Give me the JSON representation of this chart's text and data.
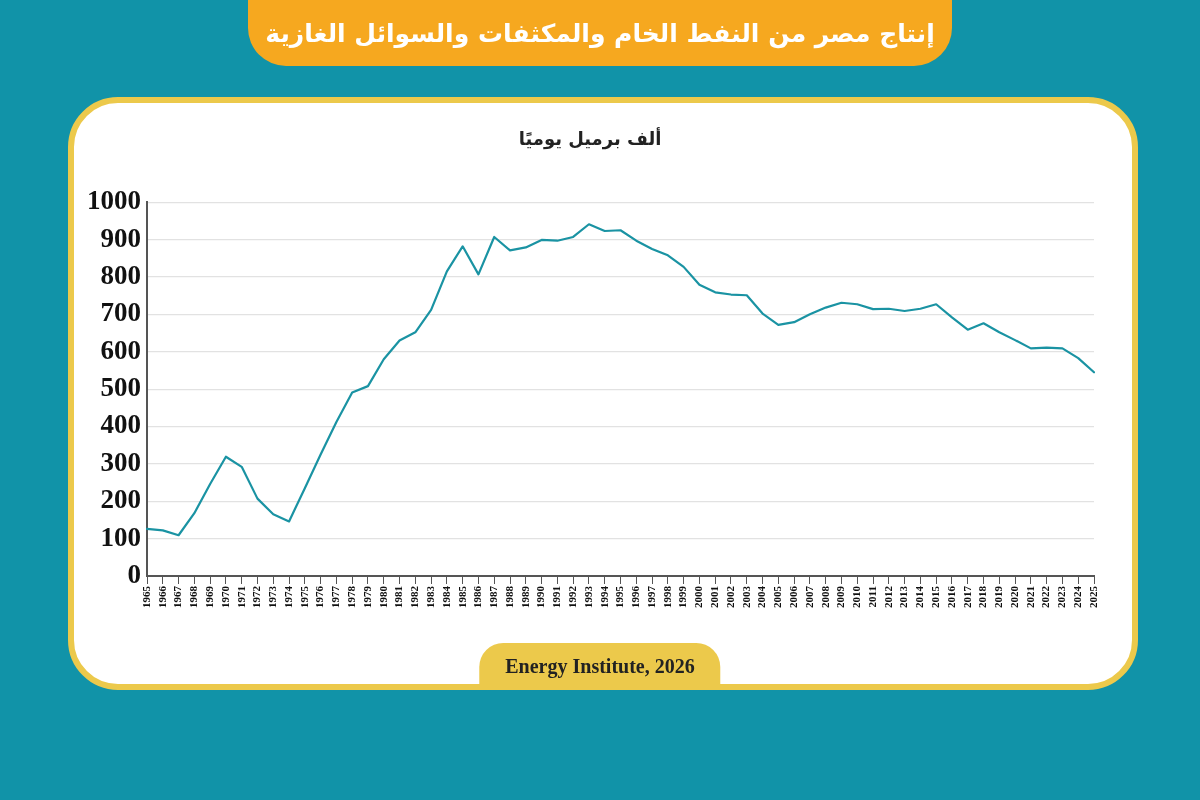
{
  "chart_data": {
    "type": "line",
    "title": "إنتاج مصر من النفط الخام والمكثفات والسوائل الغازية",
    "ylabel": "ألف برميل يوميًا",
    "categories": [
      "1965",
      "1966",
      "1967",
      "1968",
      "1969",
      "1970",
      "1971",
      "1972",
      "1973",
      "1974",
      "1975",
      "1976",
      "1977",
      "1978",
      "1979",
      "1980",
      "1981",
      "1982",
      "1983",
      "1984",
      "1985",
      "1986",
      "1987",
      "1988",
      "1989",
      "1990",
      "1991",
      "1992",
      "1993",
      "1994",
      "1995",
      "1996",
      "1997",
      "1998",
      "1999",
      "2000",
      "2001",
      "2002",
      "2003",
      "2004",
      "2005",
      "2006",
      "2007",
      "2008",
      "2009",
      "2010",
      "2011",
      "2012",
      "2013",
      "2014",
      "2015",
      "2016",
      "2017",
      "2018",
      "2019",
      "2020",
      "2021",
      "2022",
      "2023",
      "2024",
      "2025"
    ],
    "series": [
      {
        "color": "#1a93a3",
        "values": [
          126,
          122,
          109,
          168,
          246,
          319,
          292,
          207,
          165,
          146,
          235,
          325,
          412,
          491,
          508,
          580,
          630,
          652,
          712,
          815,
          882,
          807,
          907,
          871,
          879,
          899,
          897,
          907,
          941,
          923,
          925,
          897,
          875,
          858,
          827,
          779,
          759,
          753,
          751,
          702,
          672,
          679,
          700,
          718,
          731,
          727,
          714,
          715,
          709,
          715,
          727,
          692,
          659,
          676,
          652,
          631,
          609,
          611,
          609,
          583,
          545
        ]
      }
    ],
    "ylim": [
      0,
      1000
    ],
    "yticks": [
      0,
      100,
      200,
      300,
      400,
      500,
      600,
      700,
      800,
      900,
      1000
    ],
    "grid": "y",
    "marker": "none",
    "annotations": [
      "Energy Institute, 2026"
    ]
  }
}
